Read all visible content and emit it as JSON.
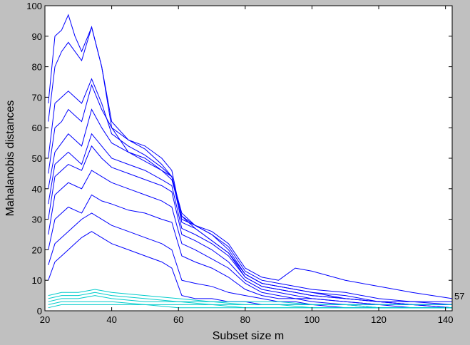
{
  "chart_data": {
    "type": "line",
    "title": "",
    "xlabel": "Subset size m",
    "ylabel": "Mahalanobis distances",
    "xlim": [
      20,
      142
    ],
    "ylim": [
      0,
      100
    ],
    "xticks": [
      20,
      40,
      60,
      80,
      100,
      120,
      140
    ],
    "yticks": [
      0,
      10,
      20,
      30,
      40,
      50,
      60,
      70,
      80,
      90,
      100
    ],
    "grid": false,
    "legend": "none",
    "end_label": "57",
    "colors": {
      "background": "#c0c0c0",
      "plot_area": "#ffffff",
      "main_trajectories": "#0000ff",
      "low_trajectories": "#00cccc",
      "axes": "#000000"
    },
    "series": [
      {
        "group": "main",
        "x": [
          21,
          23,
          25,
          27,
          29,
          31,
          34,
          37,
          40,
          45,
          50,
          55,
          58,
          61,
          65,
          70,
          75,
          80,
          85,
          90,
          95,
          100,
          110,
          120,
          130,
          142
        ],
        "y": [
          68,
          90,
          92,
          97,
          90,
          85,
          93,
          80,
          62,
          56,
          53,
          48,
          44,
          32,
          28,
          25,
          20,
          12,
          9,
          8,
          7,
          6,
          4,
          3,
          3,
          2
        ]
      },
      {
        "group": "main",
        "x": [
          21,
          23,
          25,
          27,
          29,
          31,
          34,
          37,
          40,
          45,
          50,
          55,
          58,
          61,
          65,
          70,
          75,
          80,
          85,
          90,
          95,
          100,
          110,
          120,
          130,
          142
        ],
        "y": [
          62,
          80,
          85,
          88,
          85,
          82,
          93,
          80,
          60,
          52,
          50,
          46,
          43,
          31,
          27,
          23,
          19,
          11,
          8,
          7,
          6,
          5,
          4,
          3,
          2,
          2
        ]
      },
      {
        "group": "main",
        "x": [
          21,
          23,
          25,
          27,
          29,
          31,
          34,
          37,
          40,
          45,
          50,
          55,
          58,
          61,
          65,
          70,
          75,
          80,
          85,
          90,
          95,
          100,
          110,
          120,
          130,
          142
        ],
        "y": [
          50,
          68,
          70,
          72,
          70,
          68,
          76,
          68,
          58,
          54,
          51,
          47,
          44,
          31,
          28,
          26,
          22,
          14,
          11,
          10,
          14,
          13,
          10,
          8,
          6,
          4
        ]
      },
      {
        "group": "main",
        "x": [
          21,
          23,
          25,
          27,
          29,
          31,
          34,
          37,
          40,
          45,
          50,
          55,
          58,
          61,
          65,
          70,
          75,
          80,
          85,
          90,
          95,
          100,
          110,
          120,
          130,
          142
        ],
        "y": [
          45,
          60,
          62,
          66,
          64,
          62,
          74,
          66,
          60,
          56,
          54,
          50,
          46,
          30,
          28,
          25,
          21,
          13,
          10,
          9,
          8,
          7,
          6,
          4,
          3,
          3
        ]
      },
      {
        "group": "main",
        "x": [
          21,
          23,
          25,
          27,
          29,
          31,
          34,
          37,
          40,
          45,
          50,
          55,
          58,
          61,
          65,
          70,
          75,
          80,
          85,
          90,
          95,
          100,
          110,
          120,
          130,
          142
        ],
        "y": [
          40,
          52,
          55,
          58,
          56,
          54,
          66,
          60,
          55,
          52,
          49,
          46,
          44,
          29,
          27,
          23,
          19,
          12,
          9,
          8,
          7,
          6,
          5,
          3,
          2,
          2
        ]
      },
      {
        "group": "main",
        "x": [
          21,
          23,
          25,
          27,
          29,
          31,
          34,
          37,
          40,
          45,
          50,
          55,
          58,
          61,
          65,
          70,
          75,
          80,
          85,
          90,
          95,
          100,
          110,
          120,
          130,
          142
        ],
        "y": [
          35,
          48,
          50,
          52,
          50,
          48,
          58,
          54,
          50,
          48,
          46,
          43,
          41,
          27,
          25,
          22,
          18,
          11,
          8,
          7,
          6,
          5,
          4,
          3,
          2,
          2
        ]
      },
      {
        "group": "main",
        "x": [
          21,
          23,
          25,
          27,
          29,
          31,
          34,
          37,
          40,
          45,
          50,
          55,
          58,
          61,
          65,
          70,
          75,
          80,
          85,
          90,
          95,
          100,
          110,
          120,
          130,
          142
        ],
        "y": [
          30,
          44,
          46,
          48,
          47,
          46,
          54,
          50,
          47,
          45,
          43,
          41,
          39,
          25,
          23,
          20,
          16,
          10,
          7,
          6,
          5,
          4,
          3,
          2,
          2,
          1
        ]
      },
      {
        "group": "main",
        "x": [
          21,
          23,
          25,
          27,
          29,
          31,
          34,
          37,
          40,
          45,
          50,
          55,
          58,
          61,
          65,
          70,
          75,
          80,
          85,
          90,
          95,
          100,
          110,
          120,
          130,
          142
        ],
        "y": [
          25,
          38,
          40,
          42,
          41,
          40,
          46,
          44,
          42,
          40,
          38,
          36,
          34,
          22,
          20,
          17,
          14,
          9,
          6,
          5,
          4,
          4,
          3,
          2,
          2,
          1
        ]
      },
      {
        "group": "main",
        "x": [
          21,
          23,
          25,
          27,
          29,
          31,
          34,
          37,
          40,
          45,
          50,
          55,
          58,
          61,
          65,
          70,
          75,
          80,
          85,
          90,
          95,
          100,
          110,
          120,
          130,
          142
        ],
        "y": [
          20,
          30,
          32,
          34,
          33,
          32,
          38,
          36,
          35,
          33,
          32,
          30,
          29,
          18,
          16,
          14,
          11,
          7,
          5,
          4,
          4,
          3,
          2,
          2,
          1,
          1
        ]
      },
      {
        "group": "main",
        "x": [
          21,
          23,
          25,
          27,
          29,
          31,
          34,
          37,
          40,
          45,
          50,
          55,
          58,
          61,
          65,
          70,
          75,
          80,
          85,
          90,
          95,
          100,
          110,
          120,
          130,
          142
        ],
        "y": [
          15,
          22,
          24,
          26,
          28,
          30,
          32,
          30,
          28,
          26,
          24,
          22,
          20,
          10,
          9,
          8,
          6,
          5,
          4,
          3,
          3,
          2,
          2,
          1,
          1,
          1
        ]
      },
      {
        "group": "main",
        "x": [
          21,
          23,
          25,
          27,
          29,
          31,
          34,
          37,
          40,
          45,
          50,
          55,
          58,
          61,
          65,
          70,
          75,
          80,
          85,
          90,
          95,
          100,
          110,
          120,
          130,
          142
        ],
        "y": [
          10,
          16,
          18,
          20,
          22,
          24,
          26,
          24,
          22,
          20,
          18,
          16,
          14,
          5,
          4,
          4,
          3,
          3,
          2,
          2,
          2,
          2,
          1,
          1,
          1,
          1
        ]
      },
      {
        "group": "low",
        "x": [
          21,
          25,
          30,
          35,
          40,
          50,
          60,
          70,
          80,
          90,
          100,
          110,
          120,
          130,
          142
        ],
        "y": [
          5,
          6,
          6,
          7,
          6,
          5,
          4,
          3,
          3,
          3,
          2,
          2,
          2,
          2,
          2
        ]
      },
      {
        "group": "low",
        "x": [
          21,
          25,
          30,
          35,
          40,
          50,
          60,
          70,
          80,
          90,
          100,
          110,
          120,
          130,
          142
        ],
        "y": [
          4,
          5,
          5,
          6,
          5,
          4,
          3,
          3,
          2,
          2,
          2,
          2,
          1,
          1,
          1
        ]
      },
      {
        "group": "low",
        "x": [
          21,
          25,
          30,
          35,
          40,
          50,
          60,
          70,
          80,
          90,
          100,
          110,
          120,
          130,
          142
        ],
        "y": [
          3,
          4,
          4,
          5,
          4,
          3,
          3,
          2,
          2,
          2,
          1,
          1,
          1,
          1,
          1
        ]
      },
      {
        "group": "low",
        "x": [
          21,
          25,
          30,
          35,
          40,
          50,
          60,
          70,
          80,
          90,
          100,
          110,
          120,
          130,
          142
        ],
        "y": [
          2,
          3,
          3,
          3,
          3,
          2,
          2,
          2,
          1,
          1,
          1,
          1,
          1,
          1,
          1
        ]
      },
      {
        "group": "low",
        "x": [
          21,
          25,
          30,
          35,
          40,
          50,
          60,
          70,
          80,
          90,
          100,
          110,
          120,
          130,
          142
        ],
        "y": [
          1,
          2,
          2,
          2,
          2,
          2,
          1,
          1,
          1,
          1,
          1,
          1,
          1,
          1,
          1
        ]
      }
    ]
  }
}
